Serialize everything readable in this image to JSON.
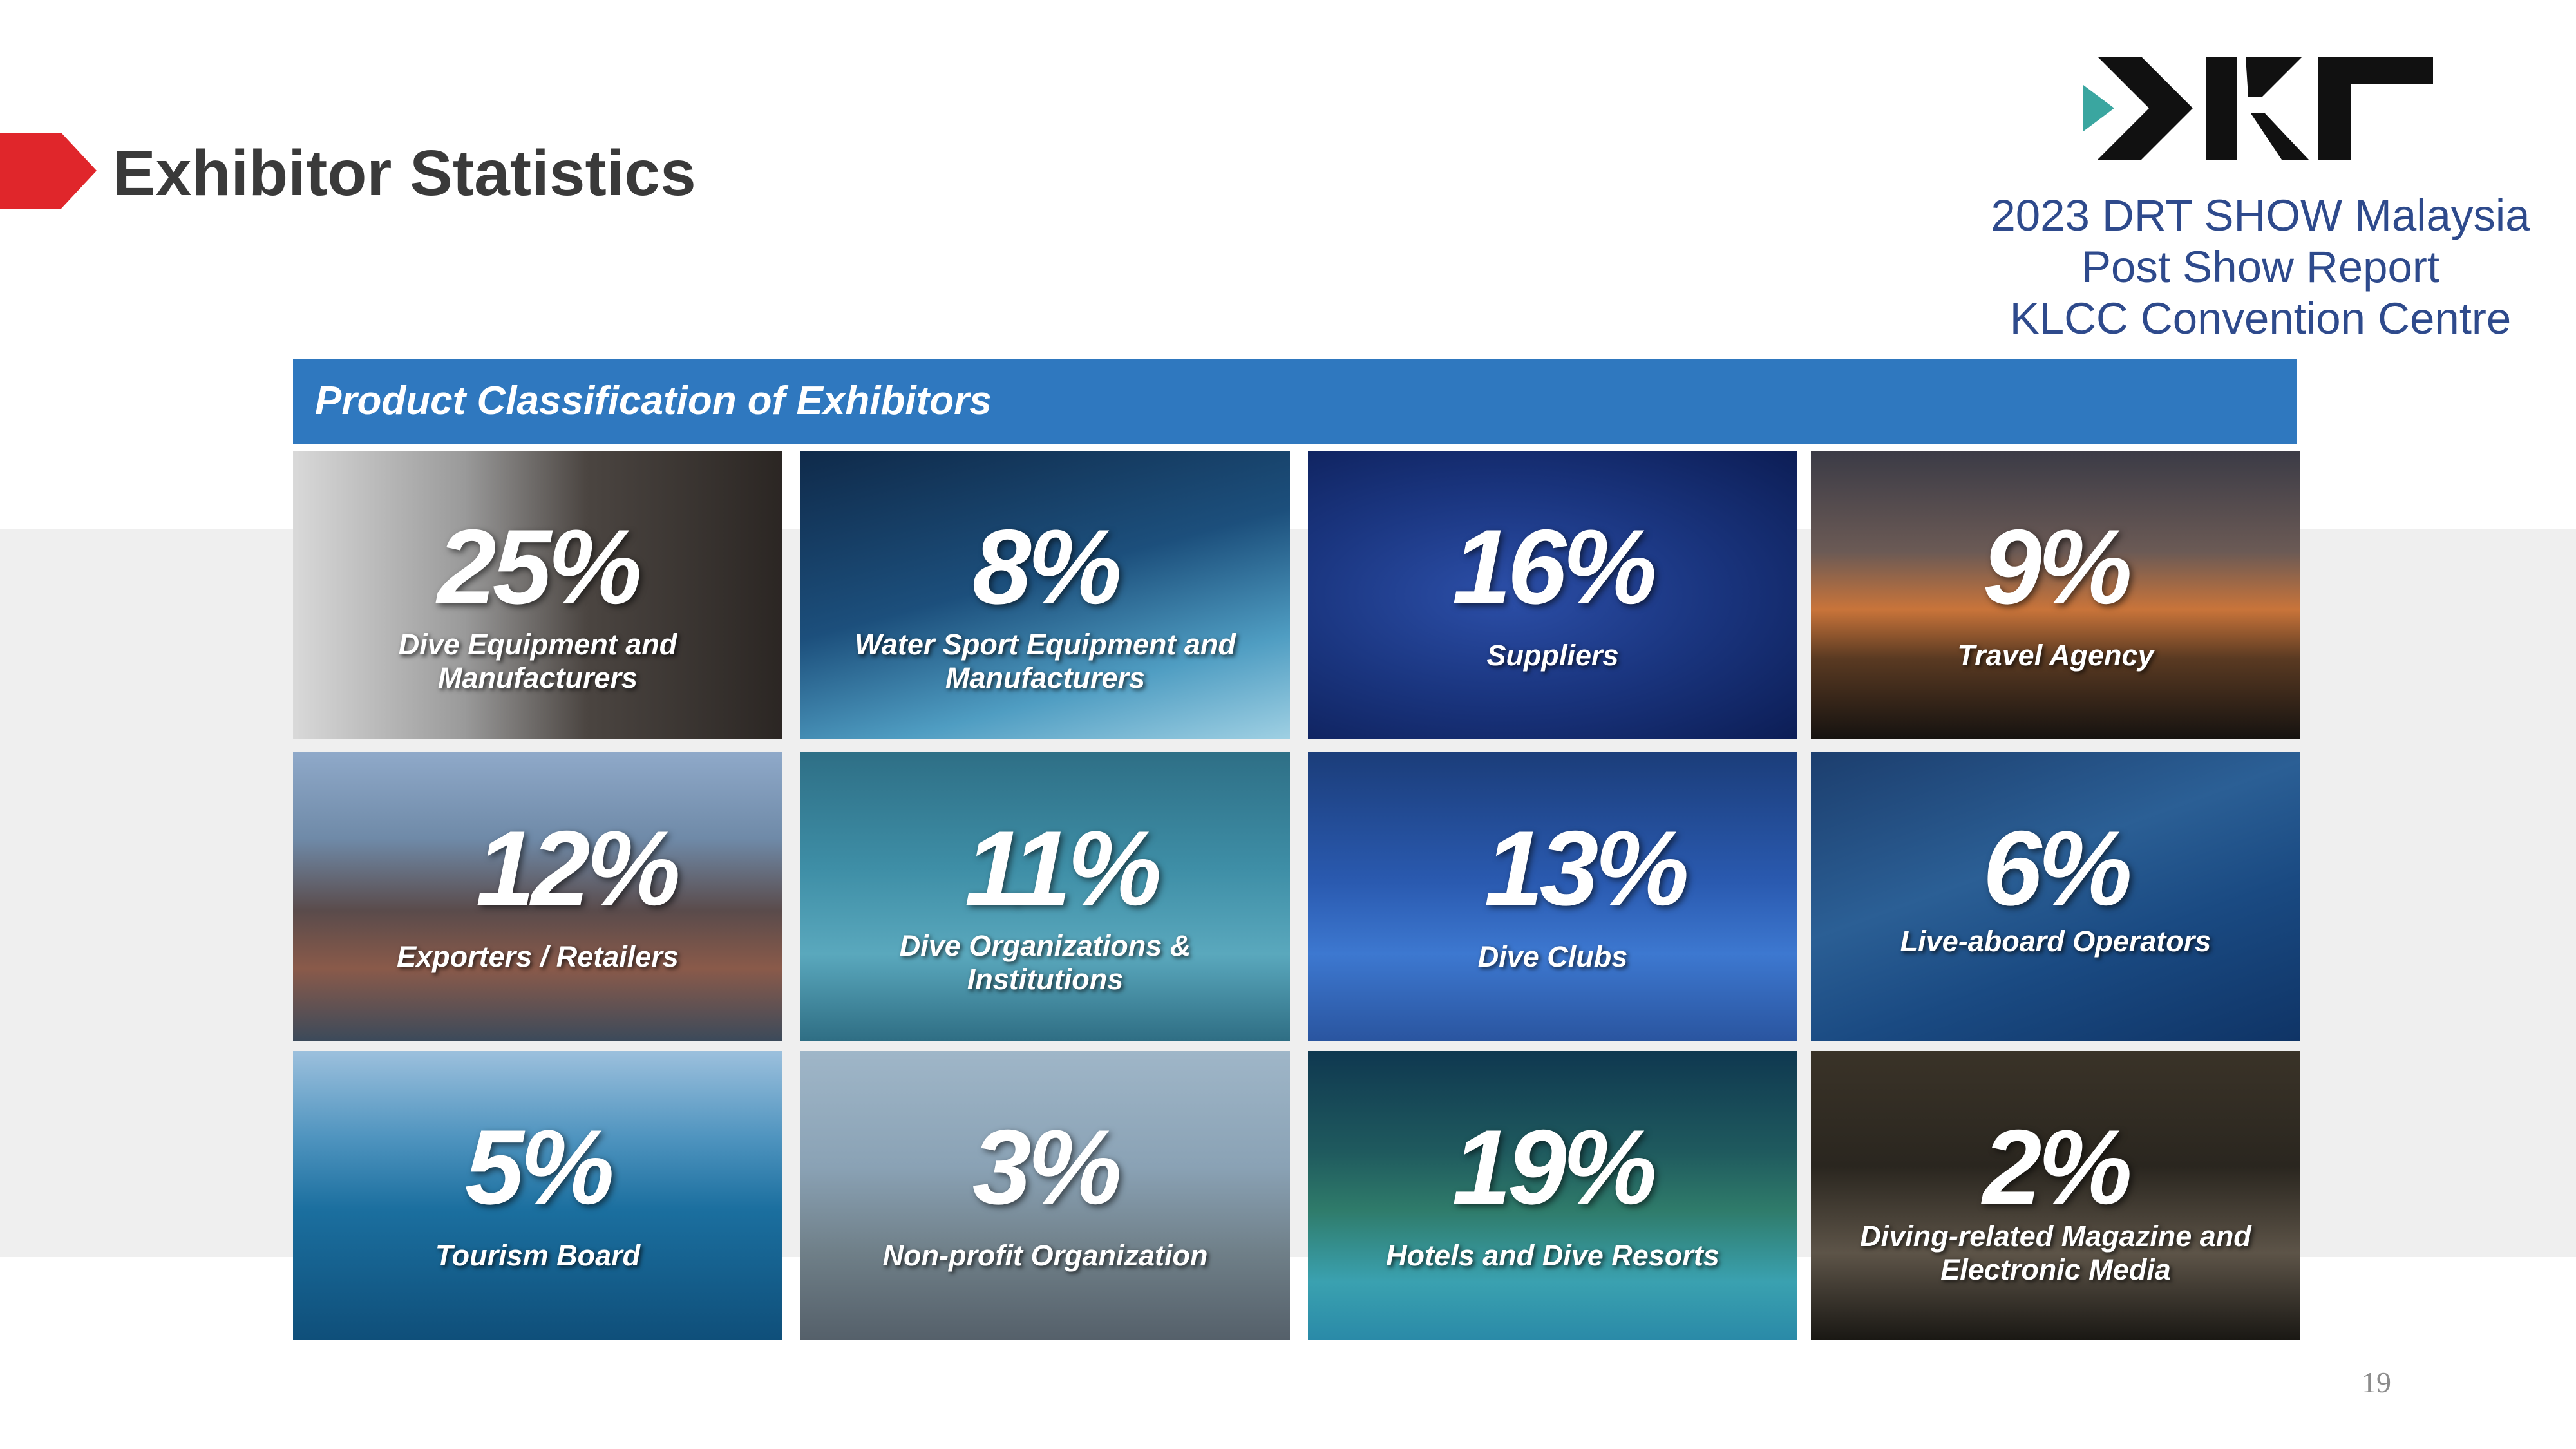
{
  "header": {
    "title": "Exhibitor Statistics"
  },
  "report_info": {
    "line1": "2023 DRT SHOW Malaysia",
    "line2": "Post Show Report",
    "line3": "KLCC Convention Centre"
  },
  "section": {
    "title": "Product Classification of  Exhibitors"
  },
  "tiles": [
    {
      "percent": "25%",
      "label": "Dive Equipment and Manufacturers"
    },
    {
      "percent": "8%",
      "label": "Water Sport Equipment and Manufacturers"
    },
    {
      "percent": "16%",
      "label": "Suppliers"
    },
    {
      "percent": "9%",
      "label": "Travel Agency"
    },
    {
      "percent": "12%",
      "label": "Exporters / Retailers"
    },
    {
      "percent": "11%",
      "label": "Dive Organizations & Institutions"
    },
    {
      "percent": "13%",
      "label": "Dive Clubs"
    },
    {
      "percent": "6%",
      "label": "Live-aboard Operators"
    },
    {
      "percent": "5%",
      "label": "Tourism Board"
    },
    {
      "percent": "3%",
      "label": "Non-profit Organization"
    },
    {
      "percent": "19%",
      "label": "Hotels and Dive Resorts"
    },
    {
      "percent": "2%",
      "label": "Diving-related Magazine and Electronic Media"
    }
  ],
  "footer": {
    "page_number": "19"
  },
  "colors": {
    "accent_red": "#e0262b",
    "header_blue": "#2f78bf",
    "report_text": "#2e4a8c",
    "logo_teal": "#3aa6a0"
  },
  "icons": {
    "title_marker": "red-arrow-marker",
    "logo": "drt-logo"
  }
}
